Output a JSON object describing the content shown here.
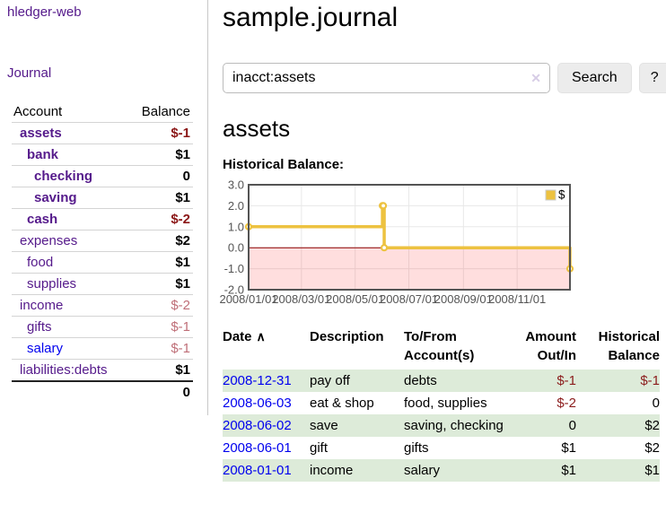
{
  "app": {
    "title": "hledger-web"
  },
  "sidebar": {
    "nav": {
      "journal": "Journal"
    },
    "table": {
      "headers": {
        "account": "Account",
        "balance": "Balance"
      },
      "accounts": [
        {
          "name": "assets",
          "balance": "$-1",
          "depth": 1,
          "bold": true,
          "balance_style": "neg-strong"
        },
        {
          "name": "bank",
          "balance": "$1",
          "depth": 2,
          "bold": true,
          "balance_style": "pos"
        },
        {
          "name": "checking",
          "balance": "0",
          "depth": 3,
          "bold": true,
          "balance_style": "pos"
        },
        {
          "name": "saving",
          "balance": "$1",
          "depth": 3,
          "bold": true,
          "balance_style": "pos"
        },
        {
          "name": "cash",
          "balance": "$-2",
          "depth": 2,
          "bold": true,
          "balance_style": "neg-strong"
        },
        {
          "name": "expenses",
          "balance": "$2",
          "depth": 1,
          "bold": false,
          "balance_style": "pos"
        },
        {
          "name": "food",
          "balance": "$1",
          "depth": 2,
          "bold": false,
          "balance_style": "pos"
        },
        {
          "name": "supplies",
          "balance": "$1",
          "depth": 2,
          "bold": false,
          "balance_style": "pos"
        },
        {
          "name": "income",
          "balance": "$-2",
          "depth": 1,
          "bold": false,
          "balance_style": "neg-muted"
        },
        {
          "name": "gifts",
          "balance": "$-1",
          "depth": 2,
          "bold": false,
          "balance_style": "neg-muted"
        },
        {
          "name": "salary",
          "balance": "$-1",
          "depth": 2,
          "bold": false,
          "balance_style": "neg-muted",
          "link_style": "blue"
        },
        {
          "name": "liabilities:debts",
          "balance": "$1",
          "depth": 1,
          "bold": false,
          "balance_style": "pos"
        }
      ],
      "total": "0"
    }
  },
  "main": {
    "title": "sample.journal"
  },
  "search": {
    "query": "inacct:assets",
    "button_label": "Search",
    "help_label": "?"
  },
  "icons": {
    "clear": "✕",
    "sort_asc": "∧"
  },
  "account_page": {
    "heading": "assets"
  },
  "chart_data": {
    "type": "line",
    "style": "step",
    "title": "Historical Balance:",
    "xlabel": "",
    "ylabel": "",
    "ylim": [
      -2,
      3
    ],
    "x_range": [
      "2008-01-01",
      "2008-12-31"
    ],
    "grid": true,
    "legend_position": "top-right",
    "series": [
      {
        "name": "$",
        "color": "#edc240",
        "points": [
          {
            "date": "2008-01-01",
            "value": 1
          },
          {
            "date": "2008-06-01",
            "value": 2
          },
          {
            "date": "2008-06-02",
            "value": 2
          },
          {
            "date": "2008-06-03",
            "value": 0
          },
          {
            "date": "2008-12-31",
            "value": -1
          }
        ]
      }
    ],
    "y_ticks": [
      {
        "value": 3,
        "label": "3.0"
      },
      {
        "value": 2,
        "label": "2.0"
      },
      {
        "value": 1,
        "label": "1.0"
      },
      {
        "value": 0,
        "label": "0.0"
      },
      {
        "value": -1,
        "label": "-1.0"
      },
      {
        "value": -2,
        "label": "-2.0"
      }
    ],
    "x_ticks": [
      {
        "date": "2008-01-01",
        "label": "2008/01/01"
      },
      {
        "date": "2008-03-01",
        "label": "2008/03/01"
      },
      {
        "date": "2008-05-01",
        "label": "2008/05/01"
      },
      {
        "date": "2008-07-01",
        "label": "2008/07/01"
      },
      {
        "date": "2008-09-01",
        "label": "2008/09/01"
      },
      {
        "date": "2008-11-01",
        "label": "2008/11/01"
      }
    ],
    "grid_color": "#e8e8e8",
    "border_color": "#545454",
    "negative_region_color": "rgba(255,0,0,0.13)",
    "zero_line_color": "#8b0000"
  },
  "register": {
    "headers": {
      "date": "Date",
      "description": "Description",
      "accounts": "To/From Account(s)",
      "amount": "Amount Out/In",
      "balance": "Historical Balance"
    },
    "rows": [
      {
        "date": "2008-12-31",
        "description": "pay off",
        "accounts": "debts",
        "amount": "$-1",
        "amount_style": "neg",
        "balance": "$-1",
        "balance_style": "neg"
      },
      {
        "date": "2008-06-03",
        "description": "eat & shop",
        "accounts": "food, supplies",
        "amount": "$-2",
        "amount_style": "neg",
        "balance": "0",
        "balance_style": "pos"
      },
      {
        "date": "2008-06-02",
        "description": "save",
        "accounts": "saving, checking",
        "amount": "0",
        "amount_style": "pos",
        "balance": "$2",
        "balance_style": "pos"
      },
      {
        "date": "2008-06-01",
        "description": "gift",
        "accounts": "gifts",
        "amount": "$1",
        "amount_style": "pos",
        "balance": "$2",
        "balance_style": "pos"
      },
      {
        "date": "2008-01-01",
        "description": "income",
        "accounts": "salary",
        "amount": "$1",
        "amount_style": "pos",
        "balance": "$1",
        "balance_style": "pos"
      }
    ]
  }
}
